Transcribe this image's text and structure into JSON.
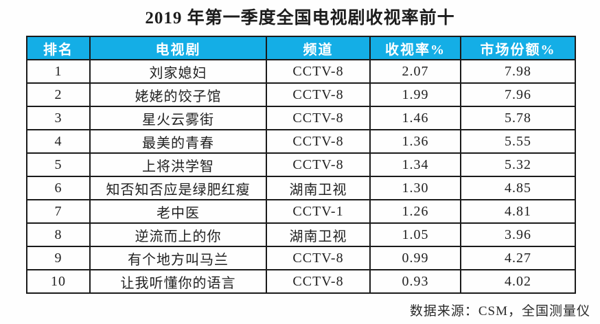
{
  "page": {
    "title": "2019 年第一季度全国电视剧收视率前十",
    "source_note": "数据来源：CSM，全国测量仪"
  },
  "colors": {
    "header_bg": "#14aee6",
    "header_text": "#ffffff",
    "border": "#1a1a1a",
    "body_text": "#212121"
  },
  "chart_data": {
    "type": "table",
    "title": "2019 年第一季度全国电视剧收视率前十",
    "columns": [
      "排名",
      "电视剧",
      "频道",
      "收视率%",
      "市场份额%"
    ],
    "rows": [
      [
        1,
        "刘家媳妇",
        "CCTV-8",
        2.07,
        7.98
      ],
      [
        2,
        "姥姥的饺子馆",
        "CCTV-8",
        1.99,
        7.96
      ],
      [
        3,
        "星火云雾街",
        "CCTV-8",
        1.46,
        5.78
      ],
      [
        4,
        "最美的青春",
        "CCTV-8",
        1.36,
        5.55
      ],
      [
        5,
        "上将洪学智",
        "CCTV-8",
        1.34,
        5.32
      ],
      [
        6,
        "知否知否应是绿肥红瘦",
        "湖南卫视",
        1.3,
        4.85
      ],
      [
        7,
        "老中医",
        "CCTV-1",
        1.26,
        4.81
      ],
      [
        8,
        "逆流而上的你",
        "湖南卫视",
        1.05,
        3.96
      ],
      [
        9,
        "有个地方叫马兰",
        "CCTV-8",
        0.99,
        4.27
      ],
      [
        10,
        "让我听懂你的语言",
        "CCTV-8",
        0.93,
        4.02
      ]
    ],
    "source": "数据来源：CSM，全国测量仪",
    "layout": {
      "header_position": "top",
      "grid": true,
      "align": "center"
    }
  }
}
